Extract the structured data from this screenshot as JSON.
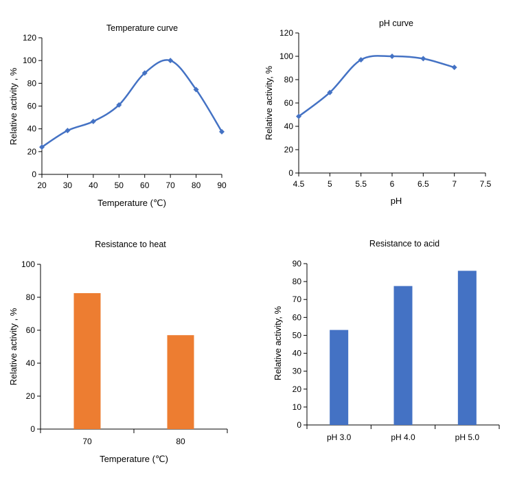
{
  "chart_data": [
    {
      "id": "temp",
      "type": "line",
      "title": "Temperature curve",
      "xlabel": "Temperature (℃)",
      "ylabel": "Relative activity , %",
      "x": [
        20,
        30,
        40,
        50,
        60,
        70,
        80,
        90
      ],
      "series": [
        {
          "name": "Relative activity",
          "values": [
            24,
            38.5,
            46.5,
            61,
            89,
            100,
            74.5,
            37.5
          ]
        }
      ],
      "xlim": [
        20,
        90
      ],
      "xticks": [
        20,
        30,
        40,
        50,
        60,
        70,
        80,
        90
      ],
      "ylim": [
        0,
        120
      ],
      "yticks": [
        0,
        20,
        40,
        60,
        80,
        100,
        120
      ],
      "color": "#4472C4",
      "smooth": true,
      "marker": "diamond",
      "grid": false
    },
    {
      "id": "ph",
      "type": "line",
      "title": "pH curve",
      "xlabel": "pH",
      "ylabel": "Relative activity, %",
      "x": [
        4.5,
        5,
        5.5,
        6,
        6.5,
        7
      ],
      "series": [
        {
          "name": "Relative activity",
          "values": [
            48.5,
            69,
            97,
            100,
            98,
            90.5
          ]
        }
      ],
      "xlim": [
        4.5,
        7.5
      ],
      "xticks": [
        4.5,
        5,
        5.5,
        6,
        6.5,
        7,
        7.5
      ],
      "ylim": [
        0,
        120
      ],
      "yticks": [
        0,
        20,
        40,
        60,
        80,
        100,
        120
      ],
      "color": "#4472C4",
      "smooth": true,
      "marker": "diamond",
      "grid": false
    },
    {
      "id": "heat",
      "type": "bar",
      "title": "Resistance to heat",
      "xlabel": "Temperature (℃)",
      "ylabel": "Relative activity , %",
      "categories": [
        "70",
        "80"
      ],
      "values": [
        82.5,
        57
      ],
      "ylim": [
        0,
        100
      ],
      "yticks": [
        0,
        20,
        40,
        60,
        80,
        100
      ],
      "color": "#ED7D31",
      "grid": false
    },
    {
      "id": "acid",
      "type": "bar",
      "title": "Resistance to acid",
      "xlabel": "",
      "ylabel": "Relative activity, %",
      "categories": [
        "pH 3.0",
        "pH 4.0",
        "pH 5.0"
      ],
      "values": [
        53,
        77.5,
        86
      ],
      "ylim": [
        0,
        90
      ],
      "yticks": [
        0,
        10,
        20,
        30,
        40,
        50,
        60,
        70,
        80,
        90
      ],
      "color": "#4472C4",
      "grid": false
    }
  ]
}
